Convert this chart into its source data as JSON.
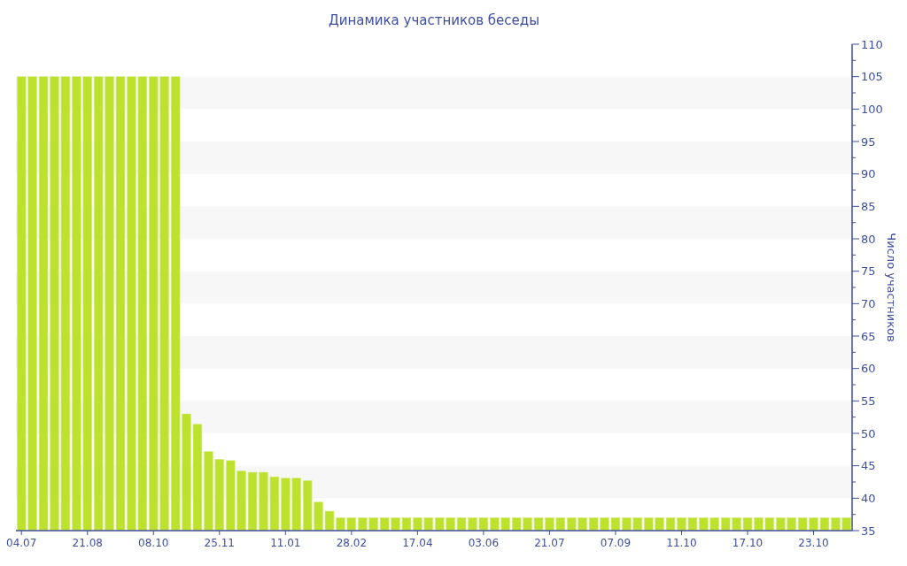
{
  "chart_data": {
    "type": "bar",
    "title": "Динамика участников беседы",
    "ylabel": "Число участников",
    "categories": [
      "04.07",
      null,
      null,
      null,
      null,
      null,
      "21.08",
      null,
      null,
      null,
      null,
      null,
      "08.10",
      null,
      null,
      null,
      null,
      null,
      "25.11",
      null,
      null,
      null,
      null,
      null,
      "11.01",
      null,
      null,
      null,
      null,
      null,
      "28.02",
      null,
      null,
      null,
      null,
      null,
      "17.04",
      null,
      null,
      null,
      null,
      null,
      "03.06",
      null,
      null,
      null,
      null,
      null,
      "21.07",
      null,
      null,
      null,
      null,
      null,
      "07.09",
      null,
      null,
      null,
      null,
      null,
      "11.10",
      null,
      null,
      null,
      null,
      null,
      "17.10",
      null,
      null,
      null,
      null,
      null,
      "23.10",
      null,
      null,
      null
    ],
    "series": [
      {
        "color": "#bde22e",
        "values": [
          105,
          105,
          105,
          105,
          105,
          105,
          105,
          105,
          105,
          105,
          105,
          105,
          105,
          105,
          105,
          53,
          51.4,
          47.2,
          46,
          45.8,
          44.2,
          44,
          44,
          43.3,
          43.1,
          43.1,
          42.7,
          39.4,
          38,
          37,
          37,
          37,
          37,
          37,
          37,
          37,
          37,
          37,
          37,
          37,
          37,
          37,
          37,
          37,
          37,
          37,
          37,
          37,
          37,
          37,
          37,
          37,
          37,
          37,
          37,
          37,
          37,
          37,
          37,
          37,
          37,
          37,
          37,
          37,
          37,
          37,
          37,
          37,
          37,
          37,
          37,
          37,
          37,
          37,
          37,
          37
        ]
      }
    ],
    "ylim": [
      35,
      110
    ],
    "yticks": [
      35,
      40,
      45,
      50,
      55,
      60,
      65,
      70,
      75,
      80,
      85,
      90,
      95,
      100,
      105,
      110
    ],
    "bands": [
      {
        "axis": "y",
        "from": 40,
        "to": 45,
        "color": "#f7f7f7"
      },
      {
        "axis": "y",
        "from": 50,
        "to": 55,
        "color": "#f7f7f7"
      },
      {
        "axis": "y",
        "from": 60,
        "to": 65,
        "color": "#f7f7f7"
      },
      {
        "axis": "y",
        "from": 70,
        "to": 75,
        "color": "#f7f7f7"
      },
      {
        "axis": "y",
        "from": 80,
        "to": 85,
        "color": "#f7f7f7"
      },
      {
        "axis": "y",
        "from": 90,
        "to": 95,
        "color": "#f7f7f7"
      },
      {
        "axis": "y",
        "from": 100,
        "to": 105,
        "color": "#f7f7f7"
      }
    ]
  }
}
